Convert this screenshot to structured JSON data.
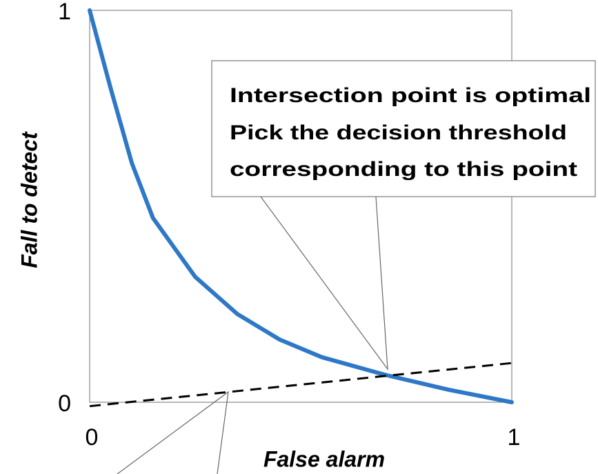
{
  "chart_data": {
    "type": "line",
    "xlabel": "False alarm",
    "ylabel": "Fall to detect",
    "xlim": [
      0,
      1
    ],
    "ylim": [
      0,
      1
    ],
    "xticks": [
      0,
      1
    ],
    "yticks": [
      0,
      1
    ],
    "series": [
      {
        "color": "#2e78c7",
        "style": "solid",
        "x": [
          0,
          0.05,
          0.1,
          0.15,
          0.25,
          0.35,
          0.45,
          0.55,
          0.7,
          0.85,
          1
        ],
        "values": [
          1,
          0.8,
          0.61,
          0.47,
          0.32,
          0.225,
          0.16,
          0.115,
          0.07,
          0.032,
          0
        ]
      },
      {
        "color": "#000000",
        "style": "dashed",
        "x": [
          0,
          1
        ],
        "values": [
          -0.01,
          0.1
        ]
      }
    ],
    "annotations": [
      "Intersection point is optimal",
      "Pick the decision threshold",
      "corresponding to this point"
    ]
  }
}
